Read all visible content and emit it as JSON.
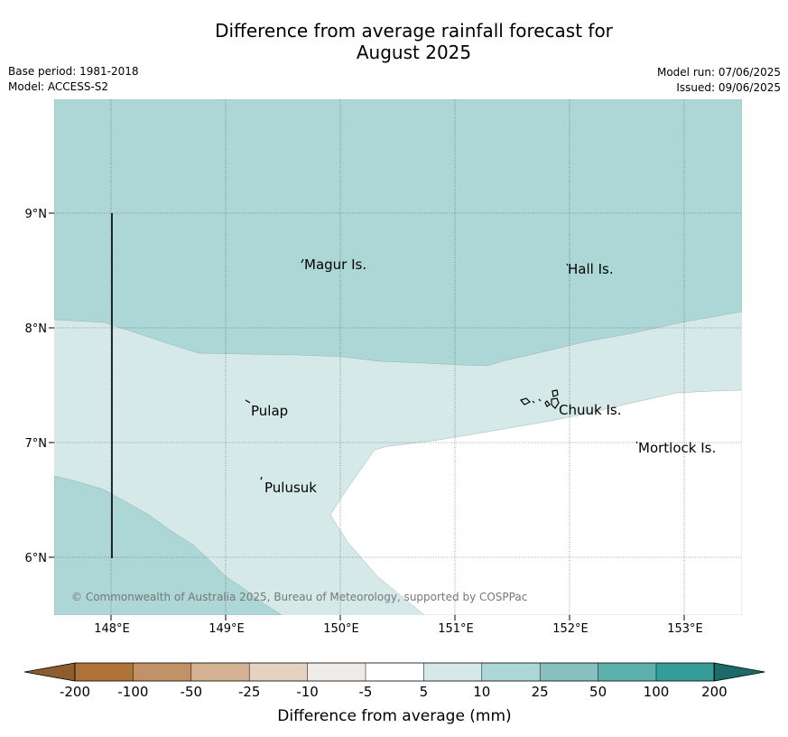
{
  "title": {
    "line1": "Difference from average rainfall forecast for",
    "line2": "August 2025"
  },
  "meta": {
    "base_period": "Base period: 1981-2018",
    "model": "Model: ACCESS-S2",
    "model_run": "Model run: 07/06/2025",
    "issued": "Issued: 09/06/2025"
  },
  "map": {
    "lat_ticks": [
      "9°N",
      "8°N",
      "7°N",
      "6°N"
    ],
    "lon_ticks": [
      "148°E",
      "149°E",
      "150°E",
      "151°E",
      "152°E",
      "153°E"
    ],
    "places": [
      "Magur Is.",
      "Hall Is.",
      "Pulap",
      "Chuuk Is.",
      "Mortlock Is.",
      "Pulusuk"
    ],
    "copyright": "© Commonwealth of Australia 2025, Bureau of Meteorology, supported by COSPPac",
    "colors": {
      "band_10_25": "#add6d6",
      "band_5_10": "#d5e9e9",
      "band_neg5_5": "#ffffff"
    }
  },
  "legend": {
    "ticks": [
      "-200",
      "-100",
      "-50",
      "-25",
      "-10",
      "-5",
      "5",
      "10",
      "25",
      "50",
      "100",
      "200"
    ],
    "colors": [
      "#ad7339",
      "#c19266",
      "#d3b293",
      "#e5d2c1",
      "#efebe8",
      "#ffffff",
      "#d5e9e9",
      "#add6d6",
      "#86c1c0",
      "#5cb0ae",
      "#359d99",
      "#1b6c69"
    ],
    "label": "Difference from average (mm)"
  }
}
